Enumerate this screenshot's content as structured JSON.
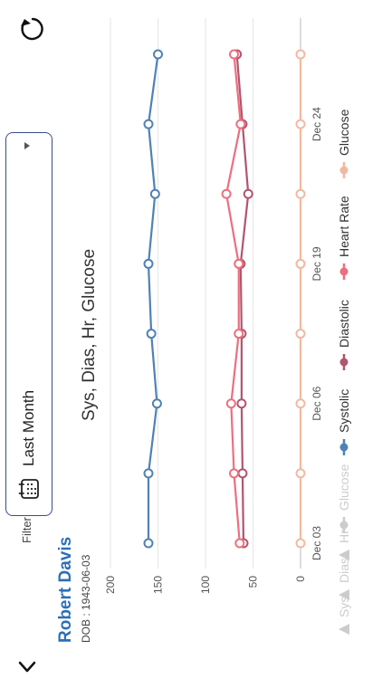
{
  "patient": {
    "name": "Robert Davis",
    "dob": "DOB : 1943-06-03"
  },
  "filter": {
    "label": "Filter:",
    "value": "Last Month"
  },
  "icons": {
    "back": "chevron-left-icon",
    "refresh": "refresh-icon",
    "calendar": "calendar-icon",
    "dropdown": "caret-down-icon"
  },
  "colors": {
    "systolic": "#4f82b4",
    "diastolic": "#b0566e",
    "heart_rate": "#ec6f80",
    "glucose": "#f2b9a0",
    "inactive": "#cccccc",
    "name": "#2c6fb7",
    "filter_border": "#3c4a90"
  },
  "chart_data": {
    "type": "line",
    "title": "Sys, Dias, Hr, Glucose",
    "y_ticks": [
      "0",
      "50",
      "100",
      "150",
      "200"
    ],
    "ylim": [
      0,
      200
    ],
    "x_tick_labels": [
      "Dec 03",
      "Dec 06",
      "Dec 19",
      "Dec 24"
    ],
    "grid": true,
    "legend_position": "bottom",
    "series": [
      {
        "key": "systolic",
        "name": "Systolic",
        "values": [
          160,
          160,
          151,
          157,
          160,
          153,
          160,
          150
        ]
      },
      {
        "key": "diastolic",
        "name": "Diastolic",
        "values": [
          60,
          61,
          62,
          62,
          63,
          55,
          61,
          67
        ]
      },
      {
        "key": "heart_rate",
        "name": "Heart Rate",
        "values": [
          64,
          70,
          73,
          65,
          65,
          78,
          63,
          70
        ]
      },
      {
        "key": "glucose",
        "name": "Glucose",
        "values": [
          0,
          0,
          0,
          0,
          0,
          0,
          0,
          0
        ]
      }
    ],
    "legend": [
      {
        "label": "Sys",
        "active": false,
        "marker": "triangle"
      },
      {
        "label": "Dias",
        "active": false,
        "marker": "triangle"
      },
      {
        "label": "Hr",
        "active": false,
        "marker": "triangle"
      },
      {
        "label": "Glucose",
        "active": false,
        "marker": "circle-line",
        "color": "#cccccc"
      },
      {
        "label": "Systolic",
        "active": true,
        "marker": "circle-line",
        "color": "#4f82b4"
      },
      {
        "label": "Diastolic",
        "active": true,
        "marker": "circle-line",
        "color": "#b0566e"
      },
      {
        "label": "Heart Rate",
        "active": true,
        "marker": "circle-line",
        "color": "#ec6f80"
      },
      {
        "label": "Glucose",
        "active": true,
        "marker": "circle-line",
        "color": "#f2b9a0"
      }
    ]
  }
}
